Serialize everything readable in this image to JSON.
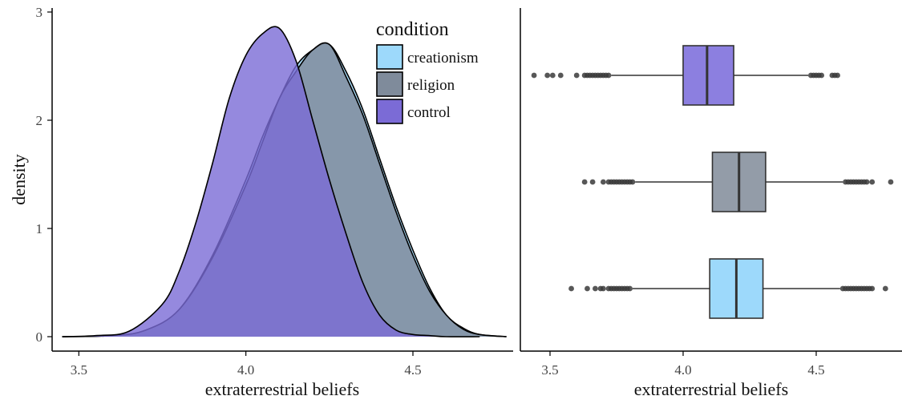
{
  "chart_data": [
    {
      "type": "area",
      "subtype": "density",
      "xlabel": "extraterrestrial beliefs",
      "ylabel": "density",
      "xlim": [
        3.42,
        4.8
      ],
      "ylim": [
        0,
        3
      ],
      "xticks": [
        3.5,
        4.0,
        4.5
      ],
      "xtick_labels": [
        "3.5",
        "4.0",
        "4.5"
      ],
      "yticks": [
        0,
        1,
        2,
        3
      ],
      "ytick_labels": [
        "0",
        "1",
        "2",
        "3"
      ],
      "grid": false,
      "legend": {
        "title": "condition",
        "placement": "top-right",
        "entries": [
          {
            "label": "creationism",
            "color": "#9dd9fb"
          },
          {
            "label": "religion",
            "color": "#7f8b9b"
          },
          {
            "label": "control",
            "color": "#7b6bd6"
          }
        ]
      },
      "series": [
        {
          "name": "creationism",
          "color": "#9dd9fb",
          "x": [
            3.45,
            3.6,
            3.7,
            3.8,
            3.9,
            4.0,
            4.05,
            4.1,
            4.15,
            4.2,
            4.25,
            4.3,
            4.35,
            4.4,
            4.45,
            4.5,
            4.55,
            4.6,
            4.65,
            4.7,
            4.78
          ],
          "y": [
            0,
            0.01,
            0.06,
            0.25,
            0.75,
            1.45,
            1.85,
            2.2,
            2.5,
            2.65,
            2.7,
            2.45,
            2.1,
            1.65,
            1.2,
            0.8,
            0.45,
            0.2,
            0.08,
            0.02,
            0
          ]
        },
        {
          "name": "religion",
          "color": "#7f8b9b",
          "x": [
            3.45,
            3.6,
            3.7,
            3.8,
            3.9,
            4.0,
            4.05,
            4.1,
            4.15,
            4.2,
            4.25,
            4.3,
            4.35,
            4.4,
            4.45,
            4.5,
            4.55,
            4.6,
            4.65,
            4.7,
            4.78
          ],
          "y": [
            0,
            0.01,
            0.06,
            0.25,
            0.73,
            1.4,
            1.8,
            2.2,
            2.45,
            2.65,
            2.7,
            2.4,
            2.05,
            1.6,
            1.15,
            0.75,
            0.42,
            0.2,
            0.07,
            0.02,
            0
          ]
        },
        {
          "name": "control",
          "color": "#7b6bd6",
          "x": [
            3.45,
            3.55,
            3.65,
            3.75,
            3.8,
            3.85,
            3.9,
            3.95,
            4.0,
            4.05,
            4.1,
            4.15,
            4.2,
            4.25,
            4.3,
            4.35,
            4.4,
            4.45,
            4.5,
            4.55,
            4.6,
            4.7
          ],
          "y": [
            0,
            0.01,
            0.05,
            0.3,
            0.6,
            1.05,
            1.6,
            2.2,
            2.6,
            2.8,
            2.85,
            2.55,
            2.0,
            1.45,
            0.95,
            0.5,
            0.2,
            0.06,
            0.02,
            0.01,
            0,
            0
          ]
        }
      ]
    },
    {
      "type": "boxplot",
      "orientation": "horizontal",
      "xlabel": "extraterrestrial beliefs",
      "xlim": [
        3.42,
        4.8
      ],
      "xticks": [
        3.5,
        4.0,
        4.5
      ],
      "xtick_labels": [
        "3.5",
        "4.0",
        "4.5"
      ],
      "grid": false,
      "boxes": [
        {
          "name": "control",
          "color": "#8c7fe0",
          "q1": 4.0,
          "median": 4.09,
          "q3": 4.19,
          "whisker_low": 3.73,
          "whisker_high": 4.47,
          "outliers": [
            3.44,
            3.49,
            3.51,
            3.54,
            3.6,
            3.63,
            3.64,
            3.65,
            3.66,
            3.67,
            3.68,
            3.69,
            3.7,
            3.71,
            3.72,
            4.48,
            4.49,
            4.5,
            4.51,
            4.52,
            4.56,
            4.57,
            4.58
          ]
        },
        {
          "name": "religion",
          "color": "#939ca8",
          "q1": 4.11,
          "median": 4.21,
          "q3": 4.31,
          "whisker_low": 3.82,
          "whisker_high": 4.6,
          "outliers": [
            3.63,
            3.66,
            3.7,
            3.72,
            3.73,
            3.74,
            3.75,
            3.76,
            3.77,
            3.78,
            3.79,
            3.8,
            3.81,
            4.61,
            4.62,
            4.63,
            4.64,
            4.65,
            4.66,
            4.67,
            4.68,
            4.69,
            4.71,
            4.78
          ]
        },
        {
          "name": "creationism",
          "color": "#9dd9fb",
          "q1": 4.1,
          "median": 4.2,
          "q3": 4.3,
          "whisker_low": 3.81,
          "whisker_high": 4.59,
          "outliers": [
            3.58,
            3.64,
            3.67,
            3.69,
            3.7,
            3.72,
            3.73,
            3.74,
            3.75,
            3.76,
            3.77,
            3.78,
            3.79,
            3.8,
            4.6,
            4.61,
            4.62,
            4.63,
            4.64,
            4.65,
            4.66,
            4.67,
            4.68,
            4.69,
            4.7,
            4.71,
            4.76
          ]
        }
      ]
    }
  ]
}
